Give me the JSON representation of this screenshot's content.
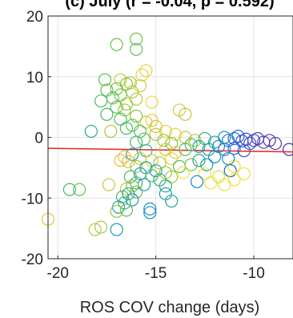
{
  "chart_data": {
    "type": "scatter",
    "title": "(c) July (r = -0.04, p = 0.592)",
    "xlabel": "ROS COV change (days)",
    "ylabel": "",
    "xlim": [
      -20.5,
      -8
    ],
    "ylim": [
      -20,
      20
    ],
    "xticks": [
      -20,
      -15,
      -10
    ],
    "xtick_labels": [
      "-20",
      "-15",
      "-10"
    ],
    "yticks": [
      -20,
      -10,
      0,
      10,
      20
    ],
    "ytick_labels": [
      "-20",
      "-10",
      "0",
      "10",
      "20"
    ],
    "grid": true,
    "legend": "none",
    "trend_line": {
      "x": [
        -20.5,
        -8
      ],
      "y": [
        -1.8,
        -2.4
      ],
      "color": "#e8231f"
    },
    "marker": "open-circle",
    "points": [
      {
        "x": -16.0,
        "y": 16.2,
        "c": "#6cc24a"
      },
      {
        "x": -17.0,
        "y": 15.3,
        "c": "#6cc24a"
      },
      {
        "x": -16.0,
        "y": 14.5,
        "c": "#5cbf58"
      },
      {
        "x": -15.5,
        "y": 11.0,
        "c": "#e0d334"
      },
      {
        "x": -15.7,
        "y": 10.3,
        "c": "#e8d13e"
      },
      {
        "x": -16.8,
        "y": 9.5,
        "c": "#bcd03a"
      },
      {
        "x": -16.3,
        "y": 9.0,
        "c": "#9ccc3e"
      },
      {
        "x": -17.6,
        "y": 9.5,
        "c": "#5cbf58"
      },
      {
        "x": -15.8,
        "y": 8.5,
        "c": "#dcc93a"
      },
      {
        "x": -16.5,
        "y": 8.8,
        "c": "#8cc63f"
      },
      {
        "x": -17.0,
        "y": 8.0,
        "c": "#74c24c"
      },
      {
        "x": -17.5,
        "y": 7.8,
        "c": "#62c05a"
      },
      {
        "x": -16.2,
        "y": 7.5,
        "c": "#a8ca3c"
      },
      {
        "x": -16.8,
        "y": 7.0,
        "c": "#7cc348"
      },
      {
        "x": -17.2,
        "y": 6.5,
        "c": "#60bf5c"
      },
      {
        "x": -16.0,
        "y": 6.3,
        "c": "#b8cd3a"
      },
      {
        "x": -17.8,
        "y": 6.0,
        "c": "#52bd62"
      },
      {
        "x": -16.5,
        "y": 5.5,
        "c": "#98c93e"
      },
      {
        "x": -17.0,
        "y": 5.0,
        "c": "#6ac150"
      },
      {
        "x": -15.2,
        "y": 5.8,
        "c": "#f0d338"
      },
      {
        "x": -16.6,
        "y": 4.5,
        "c": "#8ec740"
      },
      {
        "x": -13.8,
        "y": 4.5,
        "c": "#d8c93c"
      },
      {
        "x": -13.5,
        "y": 3.8,
        "c": "#c8c63c"
      },
      {
        "x": -17.5,
        "y": 3.8,
        "c": "#44ba6c"
      },
      {
        "x": -16.0,
        "y": 3.5,
        "c": "#86c544"
      },
      {
        "x": -16.8,
        "y": 3.0,
        "c": "#56be5e"
      },
      {
        "x": -15.2,
        "y": 2.8,
        "c": "#e2cd3a"
      },
      {
        "x": -15.5,
        "y": 2.5,
        "c": "#c6c73c"
      },
      {
        "x": -16.2,
        "y": 2.0,
        "c": "#6ec34e"
      },
      {
        "x": -15.0,
        "y": 1.8,
        "c": "#d8c63a"
      },
      {
        "x": -16.5,
        "y": 1.5,
        "c": "#48ba68"
      },
      {
        "x": -15.8,
        "y": 1.0,
        "c": "#58be60"
      },
      {
        "x": -17.3,
        "y": 1.0,
        "c": "#a6ca3c"
      },
      {
        "x": -18.3,
        "y": 1.0,
        "c": "#2ea98c"
      },
      {
        "x": -15.0,
        "y": 0.5,
        "c": "#b6c93c"
      },
      {
        "x": -14.5,
        "y": 1.0,
        "c": "#e2cb3a"
      },
      {
        "x": -14.0,
        "y": 0.5,
        "c": "#e6cf3c"
      },
      {
        "x": -13.5,
        "y": 0.0,
        "c": "#d0c83c"
      },
      {
        "x": -13.0,
        "y": -0.5,
        "c": "#b4c93e"
      },
      {
        "x": -14.6,
        "y": -0.5,
        "c": "#9cc740"
      },
      {
        "x": -15.6,
        "y": -0.3,
        "c": "#66c055"
      },
      {
        "x": -16.0,
        "y": -0.8,
        "c": "#3fb574"
      },
      {
        "x": -14.2,
        "y": -1.0,
        "c": "#7cc24a"
      },
      {
        "x": -13.2,
        "y": -1.2,
        "c": "#4ab86c"
      },
      {
        "x": -12.5,
        "y": -0.2,
        "c": "#3fb07a"
      },
      {
        "x": -12.0,
        "y": -0.8,
        "c": "#1ea2a2"
      },
      {
        "x": -11.5,
        "y": 0.0,
        "c": "#1a8fc0"
      },
      {
        "x": -11.3,
        "y": -0.5,
        "c": "#1f7fd0"
      },
      {
        "x": -11.0,
        "y": -0.2,
        "c": "#2a6ed8"
      },
      {
        "x": -10.8,
        "y": 0.2,
        "c": "#2d62d6"
      },
      {
        "x": -10.6,
        "y": -0.6,
        "c": "#3458d2"
      },
      {
        "x": -10.4,
        "y": -0.3,
        "c": "#3a4ecc"
      },
      {
        "x": -10.2,
        "y": -1.0,
        "c": "#3e48c8"
      },
      {
        "x": -10.0,
        "y": -0.5,
        "c": "#4444c4"
      },
      {
        "x": -9.8,
        "y": -0.2,
        "c": "#4a3ebe"
      },
      {
        "x": -9.5,
        "y": -0.8,
        "c": "#4e3ab8"
      },
      {
        "x": -9.2,
        "y": -0.5,
        "c": "#5234b2"
      },
      {
        "x": -8.9,
        "y": -1.0,
        "c": "#5630ac"
      },
      {
        "x": -8.2,
        "y": -2.0,
        "c": "#5a2aa6"
      },
      {
        "x": -11.8,
        "y": -1.5,
        "c": "#1f8cc6"
      },
      {
        "x": -11.5,
        "y": -2.0,
        "c": "#2a74d4"
      },
      {
        "x": -11.0,
        "y": -1.8,
        "c": "#2f66d6"
      },
      {
        "x": -10.5,
        "y": -2.2,
        "c": "#3a52cc"
      },
      {
        "x": -12.3,
        "y": -2.0,
        "c": "#17a0a8"
      },
      {
        "x": -12.8,
        "y": -1.5,
        "c": "#24a898"
      },
      {
        "x": -13.5,
        "y": -2.0,
        "c": "#58bc5e"
      },
      {
        "x": -14.0,
        "y": -2.5,
        "c": "#d0c93c"
      },
      {
        "x": -14.5,
        "y": -2.0,
        "c": "#c2c73c"
      },
      {
        "x": -15.5,
        "y": -2.2,
        "c": "#2fae86"
      },
      {
        "x": -16.2,
        "y": -2.8,
        "c": "#1c9ab4"
      },
      {
        "x": -16.6,
        "y": -3.2,
        "c": "#e4c43a"
      },
      {
        "x": -16.8,
        "y": -3.8,
        "c": "#e8be3a"
      },
      {
        "x": -16.4,
        "y": -4.0,
        "c": "#d6c13a"
      },
      {
        "x": -15.8,
        "y": -3.5,
        "c": "#c9c53c"
      },
      {
        "x": -15.2,
        "y": -3.8,
        "c": "#d9c73a"
      },
      {
        "x": -14.8,
        "y": -4.2,
        "c": "#a2c740"
      },
      {
        "x": -14.2,
        "y": -3.5,
        "c": "#eed234"
      },
      {
        "x": -13.8,
        "y": -4.8,
        "c": "#5aba5c"
      },
      {
        "x": -13.2,
        "y": -4.5,
        "c": "#7ac247"
      },
      {
        "x": -12.8,
        "y": -3.8,
        "c": "#2aa694"
      },
      {
        "x": -12.4,
        "y": -4.5,
        "c": "#189fa8"
      },
      {
        "x": -16.0,
        "y": -4.8,
        "c": "#9cc83e"
      },
      {
        "x": -15.5,
        "y": -5.0,
        "c": "#2aaa90"
      },
      {
        "x": -15.0,
        "y": -5.5,
        "c": "#1ea4a0"
      },
      {
        "x": -14.5,
        "y": -5.8,
        "c": "#8cc642"
      },
      {
        "x": -15.8,
        "y": -6.0,
        "c": "#1a98b6"
      },
      {
        "x": -16.3,
        "y": -6.5,
        "c": "#4ab866"
      },
      {
        "x": -15.2,
        "y": -6.3,
        "c": "#62be58"
      },
      {
        "x": -14.8,
        "y": -7.0,
        "c": "#30ad84"
      },
      {
        "x": -14.2,
        "y": -6.5,
        "c": "#a6c93c"
      },
      {
        "x": -16.0,
        "y": -7.5,
        "c": "#38b27a"
      },
      {
        "x": -15.6,
        "y": -7.8,
        "c": "#20a0a2"
      },
      {
        "x": -14.5,
        "y": -8.0,
        "c": "#2ea98a"
      },
      {
        "x": -16.2,
        "y": -8.0,
        "c": "#7cc248"
      },
      {
        "x": -16.5,
        "y": -8.5,
        "c": "#c6c83a"
      },
      {
        "x": -16.0,
        "y": -9.0,
        "c": "#6cc050"
      },
      {
        "x": -16.4,
        "y": -9.3,
        "c": "#2caa8c"
      },
      {
        "x": -16.7,
        "y": -9.8,
        "c": "#48b86a"
      },
      {
        "x": -16.2,
        "y": -10.3,
        "c": "#1c9ab6"
      },
      {
        "x": -16.6,
        "y": -10.8,
        "c": "#30ae84"
      },
      {
        "x": -16.9,
        "y": -11.5,
        "c": "#22a29e"
      },
      {
        "x": -16.5,
        "y": -12.0,
        "c": "#5ebe5a"
      },
      {
        "x": -17.0,
        "y": -12.2,
        "c": "#8ec640"
      },
      {
        "x": -15.3,
        "y": -11.8,
        "c": "#1a94ba"
      },
      {
        "x": -15.3,
        "y": -12.4,
        "c": "#1f86c8"
      },
      {
        "x": -14.5,
        "y": -9.3,
        "c": "#1a9ab2"
      },
      {
        "x": -14.2,
        "y": -10.5,
        "c": "#26a49a"
      },
      {
        "x": -13.6,
        "y": -5.8,
        "c": "#eee436"
      },
      {
        "x": -12.5,
        "y": -6.0,
        "c": "#f0e434"
      },
      {
        "x": -12.2,
        "y": -7.5,
        "c": "#e8e03a"
      },
      {
        "x": -11.8,
        "y": -6.5,
        "c": "#dcdc3a"
      },
      {
        "x": -11.5,
        "y": -7.8,
        "c": "#ecdf38"
      },
      {
        "x": -11.2,
        "y": -5.5,
        "c": "#1a5ccf"
      },
      {
        "x": -12.9,
        "y": -7.3,
        "c": "#1c80cc"
      },
      {
        "x": -11.0,
        "y": -7.0,
        "c": "#f2e434"
      },
      {
        "x": -10.5,
        "y": -6.0,
        "c": "#e8e33a"
      },
      {
        "x": -11.0,
        "y": -4.8,
        "c": "#ecdc38"
      },
      {
        "x": -11.3,
        "y": -3.5,
        "c": "#1a92bc"
      },
      {
        "x": -12.0,
        "y": -3.2,
        "c": "#1a8fbe"
      },
      {
        "x": -17.8,
        "y": -14.8,
        "c": "#a8c93c"
      },
      {
        "x": -18.1,
        "y": -15.2,
        "c": "#b4cb3a"
      },
      {
        "x": -17.0,
        "y": -15.2,
        "c": "#2196b8"
      },
      {
        "x": -19.4,
        "y": -8.6,
        "c": "#44b86c"
      },
      {
        "x": -18.9,
        "y": -8.6,
        "c": "#6ac150"
      },
      {
        "x": -17.4,
        "y": -7.8,
        "c": "#ccc63c"
      },
      {
        "x": -20.5,
        "y": -13.5,
        "c": "#e8c43a"
      }
    ]
  }
}
